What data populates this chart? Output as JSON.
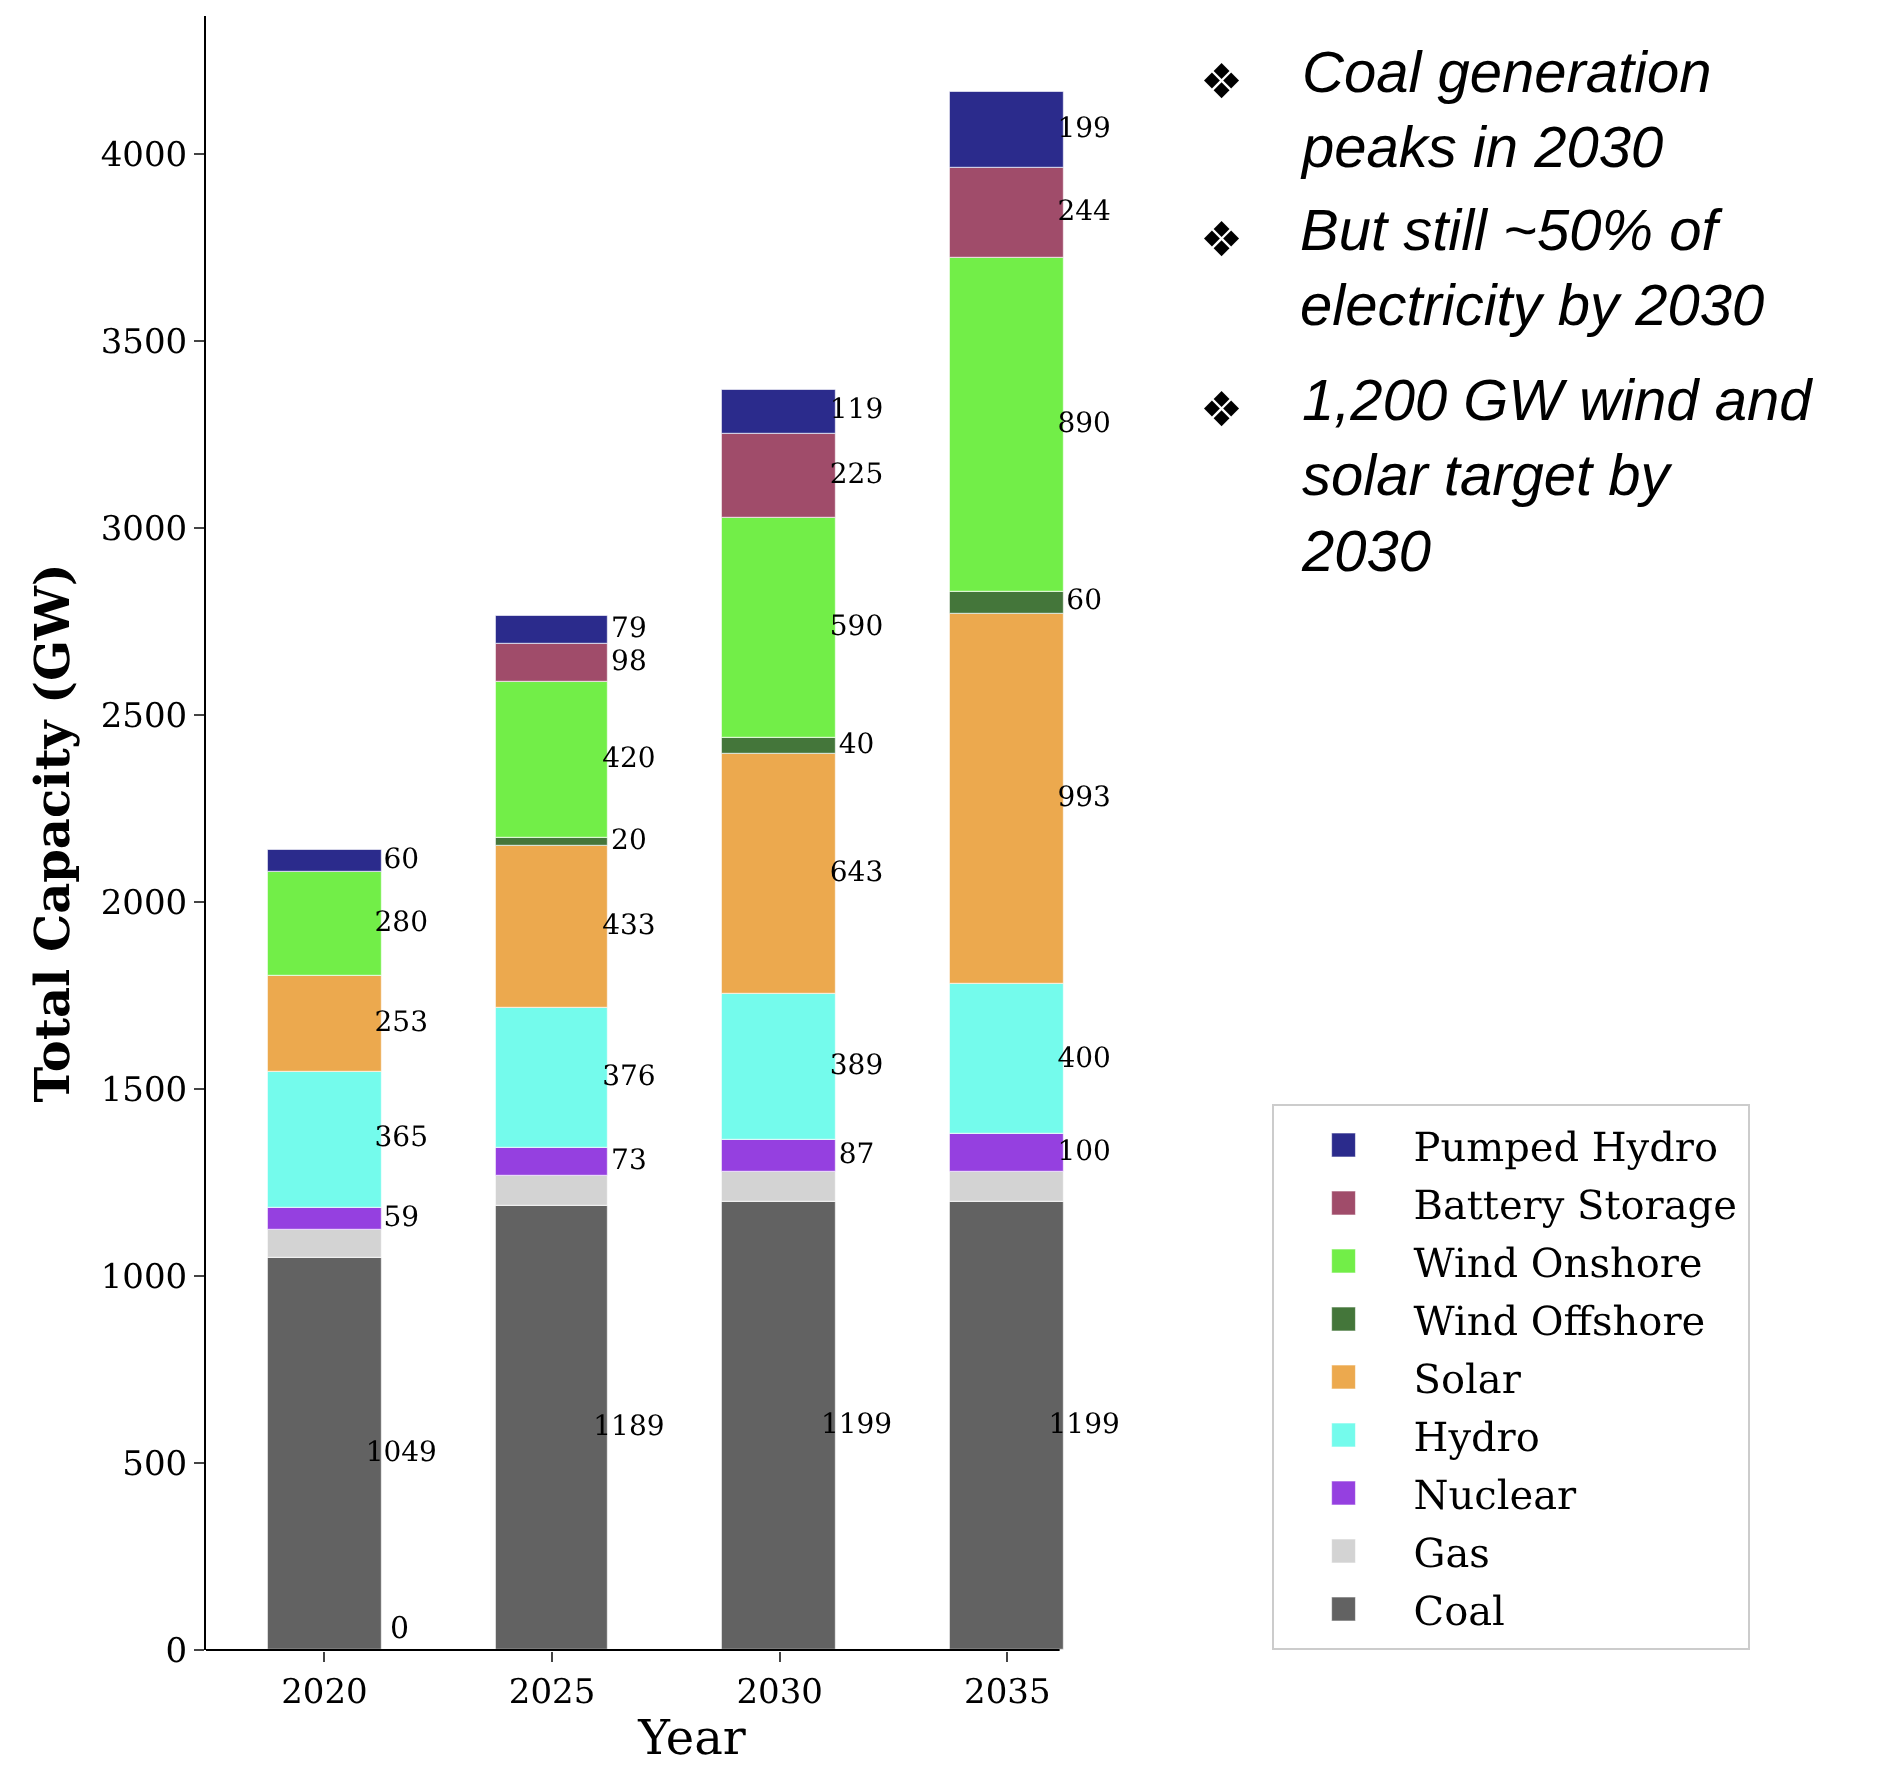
{
  "chart_data": {
    "type": "bar",
    "stacked": true,
    "xlabel": "Year",
    "ylabel": "Total Capacity (GW)",
    "categories": [
      "2020",
      "2025",
      "2030",
      "2035"
    ],
    "ylim": [
      0,
      4370
    ],
    "yticks": [
      0,
      500,
      1000,
      1500,
      2000,
      2500,
      3000,
      3500,
      4000
    ],
    "grid": false,
    "legend": "right",
    "series": [
      {
        "name": "Coal",
        "color": "#626262",
        "values": [
          1049,
          1189,
          1199,
          1199
        ],
        "value_labels": [
          "1049",
          "1189",
          "1199",
          "1199"
        ]
      },
      {
        "name": "Gas",
        "color": "#d3d3d3",
        "values": [
          75,
          80,
          80,
          80
        ],
        "value_labels": [
          null,
          null,
          null,
          null
        ]
      },
      {
        "name": "Nuclear",
        "color": "#9540e0",
        "values": [
          59,
          73,
          87,
          100
        ],
        "value_labels": [
          "59",
          "73",
          "87",
          "100"
        ]
      },
      {
        "name": "Hydro",
        "color": "#74fbec",
        "values": [
          365,
          376,
          389,
          400
        ],
        "value_labels": [
          "365",
          "376",
          "389",
          "400"
        ]
      },
      {
        "name": "Solar",
        "color": "#eca94e",
        "values": [
          253,
          433,
          643,
          993
        ],
        "value_labels": [
          "253",
          "433",
          "643",
          "993"
        ]
      },
      {
        "name": "Wind Offshore",
        "color": "#44763a",
        "values": [
          0,
          20,
          40,
          60
        ],
        "value_labels": [
          null,
          "20",
          "40",
          "60"
        ]
      },
      {
        "name": "Wind Onshore",
        "color": "#72ee48",
        "values": [
          280,
          420,
          590,
          890
        ],
        "value_labels": [
          "280",
          "420",
          "590",
          "890"
        ]
      },
      {
        "name": "Battery Storage",
        "color": "#a04c6a",
        "values": [
          0,
          98,
          225,
          244
        ],
        "value_labels": [
          null,
          "98",
          "225",
          "244"
        ]
      },
      {
        "name": "Pumped Hydro",
        "color": "#2b2b8c",
        "values": [
          60,
          79,
          119,
          199
        ],
        "value_labels": [
          "60",
          "79",
          "119",
          "199"
        ]
      }
    ],
    "annotations": [
      {
        "text": "0",
        "x": "2020",
        "y": 0
      },
      "❖ Coal generation peaks in 2030",
      "❖ But still ~50% of electricity by 2030",
      "❖ 1,200 GW wind and solar target by 2030"
    ]
  }
}
